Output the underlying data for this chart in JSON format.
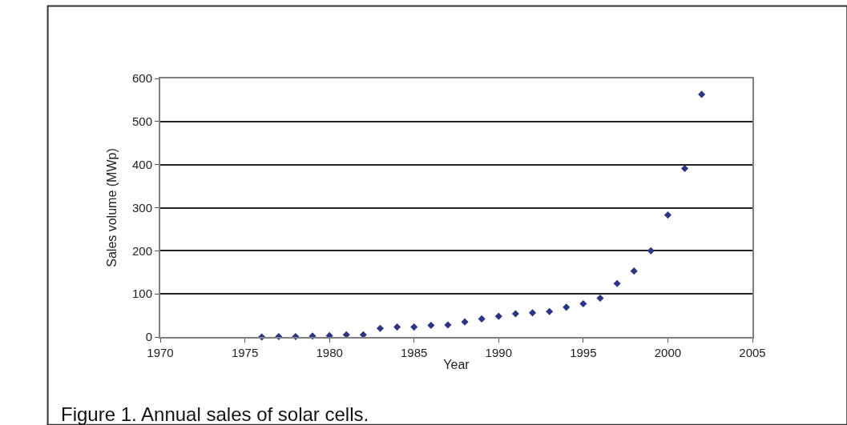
{
  "chart_data": {
    "type": "scatter",
    "xlabel": "Year",
    "ylabel": "Sales volume (MWp)",
    "x": [
      1976,
      1977,
      1978,
      1979,
      1980,
      1981,
      1982,
      1983,
      1984,
      1985,
      1986,
      1987,
      1988,
      1989,
      1990,
      1991,
      1992,
      1993,
      1994,
      1995,
      1996,
      1997,
      1998,
      1999,
      2000,
      2001,
      2002
    ],
    "series": [
      {
        "color": "#2e3585",
        "values": [
          0,
          1,
          1,
          2,
          3,
          5,
          5,
          20,
          23,
          23,
          27,
          28,
          35,
          42,
          48,
          54,
          56,
          59,
          69,
          77,
          90,
          124,
          153,
          200,
          283,
          391,
          563
        ]
      }
    ],
    "xlim": [
      1970,
      2005
    ],
    "xticks": [
      1970,
      1975,
      1980,
      1985,
      1990,
      1995,
      2000,
      2005
    ],
    "ylim": [
      0,
      600
    ],
    "yticks": [
      0,
      100,
      200,
      300,
      400,
      500,
      600
    ],
    "grid": "y",
    "marker": "diamond",
    "legend": false,
    "annotations": [
      "Figure 1. Annual sales of solar cells."
    ]
  }
}
